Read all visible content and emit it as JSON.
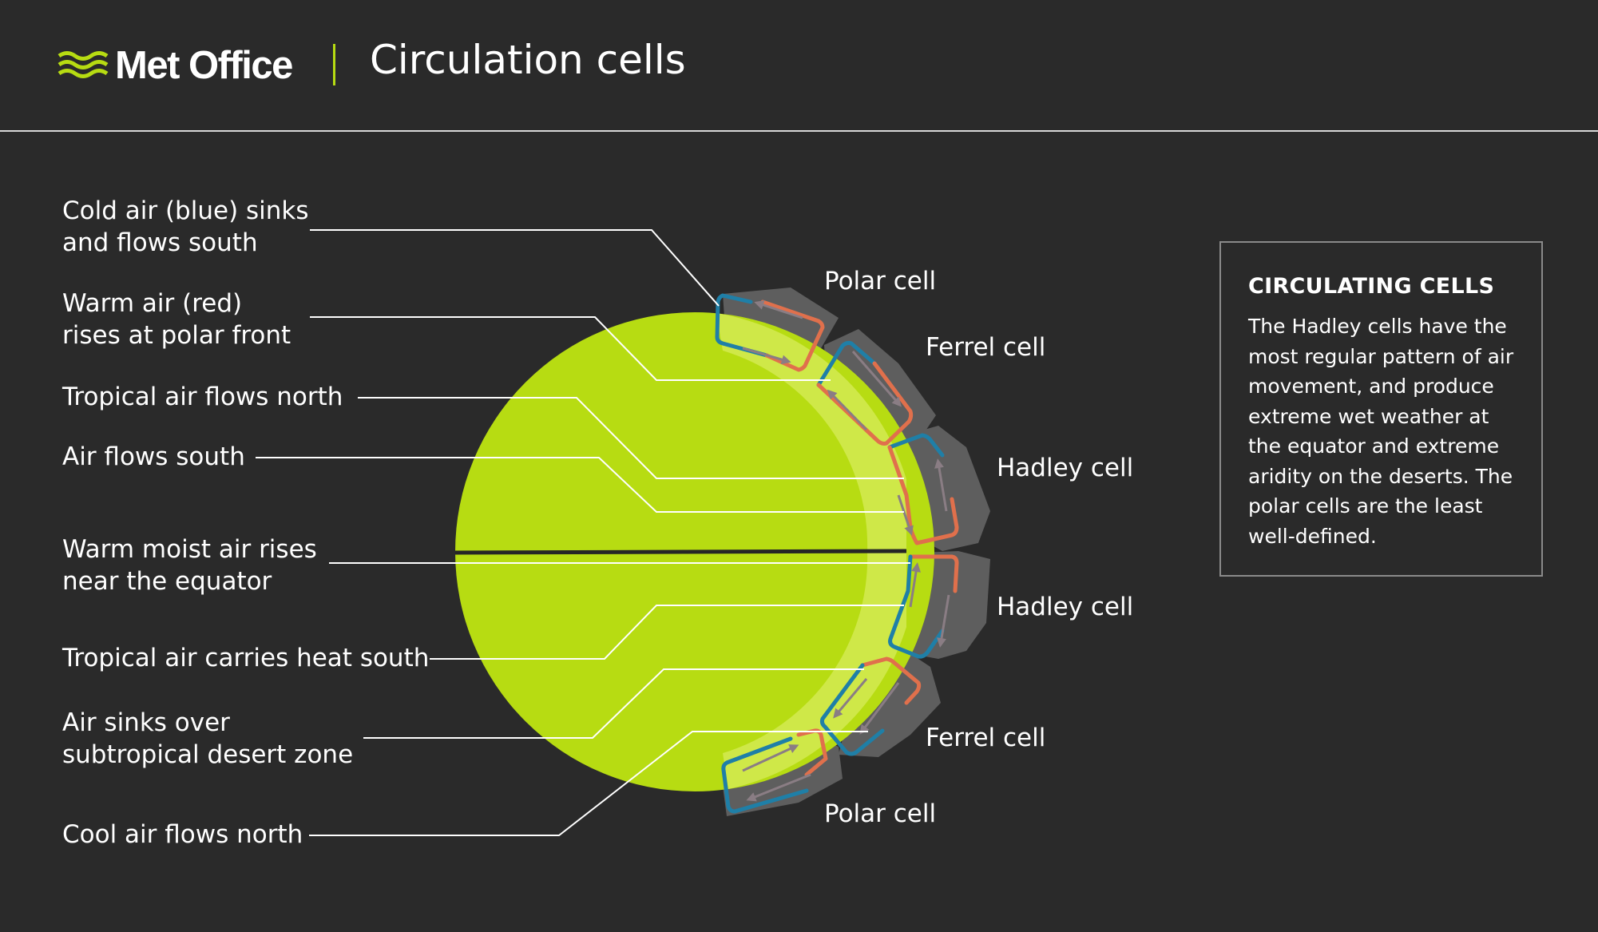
{
  "header": {
    "brand": "Met Office",
    "title": "Circulation cells"
  },
  "colors": {
    "background": "#2a2a2a",
    "globe": "#b7dc12",
    "band": "#cfe848",
    "cell_shadow": "#5e5e5e",
    "cold_air": "#1f7fa7",
    "warm_air": "#e0704c",
    "leader_line": "#ffffff",
    "accent": "#b7dc12"
  },
  "cells": {
    "polar_north": "Polar cell",
    "ferrel_north": "Ferrel cell",
    "hadley_north": "Hadley cell",
    "hadley_south": "Hadley cell",
    "ferrel_south": "Ferrel cell",
    "polar_south": "Polar cell"
  },
  "callouts": {
    "cold_air_sinks": [
      "Cold air (blue) sinks",
      "and flows south"
    ],
    "warm_air_rises": [
      "Warm air (red)",
      "rises at polar front"
    ],
    "tropical_air_north": "Tropical air flows north",
    "air_flows_south": "Air flows south",
    "warm_moist_air": [
      "Warm moist air rises",
      "near the equator"
    ],
    "tropical_heat_south": "Tropical air carries heat south",
    "air_sinks_desert": [
      "Air sinks over",
      "subtropical desert zone"
    ],
    "cool_air_north": "Cool air flows north"
  },
  "info_box": {
    "title": "CIRCULATING CELLS",
    "body": "The Hadley cells have the most regular pattern of air movement, and produce extreme wet weather at the equator and extreme aridity on the deserts. The polar cells are the least well-defined."
  }
}
